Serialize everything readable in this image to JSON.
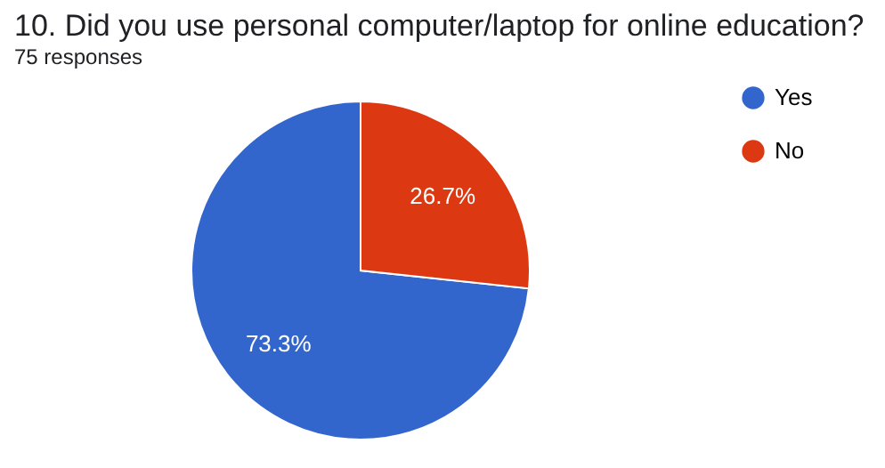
{
  "chart_data": {
    "type": "pie",
    "title": "10. Did you use personal computer/laptop for online education?",
    "subtitle": "75 responses",
    "categories": [
      "Yes",
      "No"
    ],
    "values": [
      73.3,
      26.7
    ],
    "colors": [
      "#3366cc",
      "#dc3912"
    ],
    "value_labels": [
      "73.3%",
      "26.7%"
    ],
    "legend": "right"
  }
}
